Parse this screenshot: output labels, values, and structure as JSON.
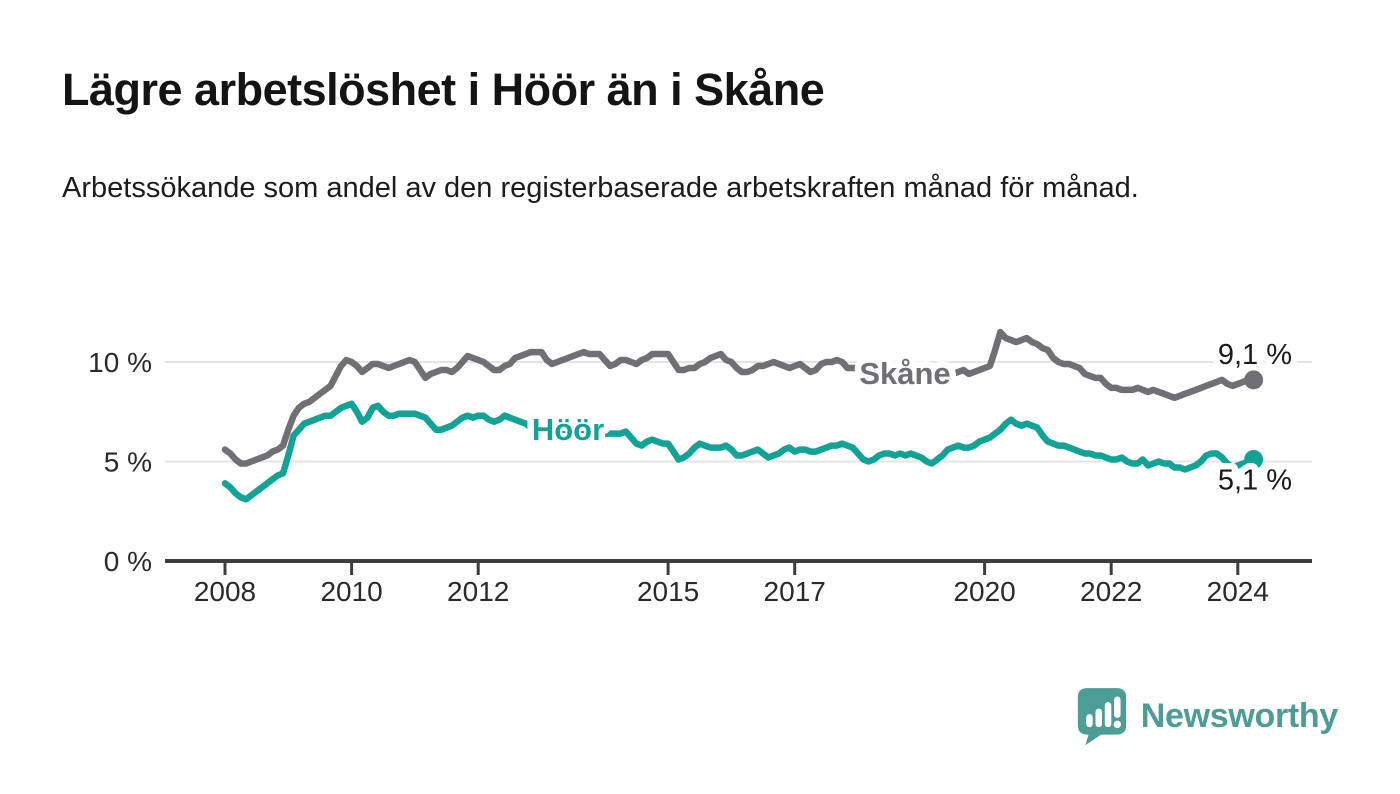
{
  "header": {
    "title": "Lägre arbetslöshet i Höör än i Skåne",
    "subtitle": "Arbetssökande som andel av den registerbaserade arbetskraften månad för månad."
  },
  "footer": {
    "brand": "Newsworthy"
  },
  "colors": {
    "skane_line": "#6f6f75",
    "hoor_line": "#12a396",
    "grid": "#e4e4e4",
    "axis": "#3d3d3d",
    "text": "#1a1a1a",
    "logo_teal": "#4d9c96",
    "background": "#ffffff"
  },
  "chart_data": {
    "type": "line",
    "unit": "percent",
    "frequency": "monthly",
    "start": {
      "year": 2008,
      "month": 1
    },
    "end": {
      "year": 2024,
      "month": 4
    },
    "grid": "horizontal",
    "ylim": [
      0,
      11.8
    ],
    "yticks": [
      {
        "value": 0,
        "label": "0 %"
      },
      {
        "value": 5,
        "label": "5 %"
      },
      {
        "value": 10,
        "label": "10 %"
      }
    ],
    "xticks": [
      2008,
      2010,
      2012,
      2015,
      2017,
      2020,
      2022,
      2024
    ],
    "series": [
      {
        "name": "Skåne",
        "color": "#6f6f75",
        "latest_value": 9.1,
        "end_label": "9,1 %",
        "values": [
          5.6,
          5.4,
          5.1,
          4.9,
          4.9,
          5.0,
          5.1,
          5.2,
          5.3,
          5.5,
          5.6,
          5.8,
          6.6,
          7.3,
          7.7,
          7.9,
          8.0,
          8.2,
          8.4,
          8.6,
          8.8,
          9.3,
          9.8,
          10.1,
          10.0,
          9.8,
          9.5,
          9.7,
          9.9,
          9.9,
          9.8,
          9.7,
          9.8,
          9.9,
          10.0,
          10.1,
          10.0,
          9.6,
          9.2,
          9.4,
          9.5,
          9.6,
          9.6,
          9.5,
          9.7,
          10.0,
          10.3,
          10.2,
          10.1,
          10.0,
          9.8,
          9.6,
          9.6,
          9.8,
          9.9,
          10.2,
          10.3,
          10.4,
          10.5,
          10.5,
          10.5,
          10.1,
          9.9,
          10.0,
          10.1,
          10.2,
          10.3,
          10.4,
          10.5,
          10.4,
          10.4,
          10.4,
          10.1,
          9.8,
          9.9,
          10.1,
          10.1,
          10.0,
          9.9,
          10.1,
          10.2,
          10.4,
          10.4,
          10.4,
          10.4,
          10.0,
          9.6,
          9.6,
          9.7,
          9.7,
          9.9,
          10.0,
          10.2,
          10.3,
          10.4,
          10.1,
          10.0,
          9.7,
          9.5,
          9.5,
          9.6,
          9.8,
          9.8,
          9.9,
          10.0,
          9.9,
          9.8,
          9.7,
          9.8,
          9.9,
          9.7,
          9.5,
          9.6,
          9.9,
          10.0,
          10.0,
          10.1,
          10.0,
          9.7,
          9.7,
          9.7,
          9.6,
          9.6,
          9.5,
          9.5,
          9.5,
          9.4,
          9.4,
          9.5,
          9.5,
          9.4,
          9.4,
          9.4,
          9.4,
          9.3,
          9.4,
          9.4,
          9.5,
          9.4,
          9.5,
          9.6,
          9.4,
          9.5,
          9.6,
          9.7,
          9.8,
          10.6,
          11.5,
          11.2,
          11.1,
          11.0,
          11.1,
          11.2,
          11.0,
          10.9,
          10.7,
          10.6,
          10.2,
          10.0,
          9.9,
          9.9,
          9.8,
          9.7,
          9.4,
          9.3,
          9.2,
          9.2,
          8.9,
          8.7,
          8.7,
          8.6,
          8.6,
          8.6,
          8.7,
          8.6,
          8.5,
          8.6,
          8.5,
          8.4,
          8.3,
          8.2,
          8.3,
          8.4,
          8.5,
          8.6,
          8.7,
          8.8,
          8.9,
          9.0,
          9.1,
          8.9,
          8.8,
          8.9,
          9.0,
          9.1,
          9.1
        ]
      },
      {
        "name": "Höör",
        "color": "#12a396",
        "latest_value": 5.1,
        "end_label": "5,1 %",
        "values": [
          3.9,
          3.7,
          3.4,
          3.2,
          3.1,
          3.3,
          3.5,
          3.7,
          3.9,
          4.1,
          4.3,
          4.4,
          5.3,
          6.3,
          6.6,
          6.9,
          7.0,
          7.1,
          7.2,
          7.3,
          7.3,
          7.5,
          7.7,
          7.8,
          7.9,
          7.5,
          7.0,
          7.2,
          7.7,
          7.8,
          7.5,
          7.3,
          7.3,
          7.4,
          7.4,
          7.4,
          7.4,
          7.3,
          7.2,
          6.9,
          6.6,
          6.6,
          6.7,
          6.8,
          7.0,
          7.2,
          7.3,
          7.2,
          7.3,
          7.3,
          7.1,
          7.0,
          7.1,
          7.3,
          7.2,
          7.1,
          7.0,
          6.9,
          6.7,
          6.6,
          6.6,
          6.5,
          6.5,
          6.4,
          6.4,
          6.5,
          6.5,
          6.4,
          6.5,
          6.4,
          6.4,
          6.4,
          6.4,
          6.4,
          6.4,
          6.4,
          6.5,
          6.2,
          5.9,
          5.8,
          6.0,
          6.1,
          6.0,
          5.9,
          5.9,
          5.5,
          5.1,
          5.2,
          5.4,
          5.7,
          5.9,
          5.8,
          5.7,
          5.7,
          5.7,
          5.8,
          5.6,
          5.3,
          5.3,
          5.4,
          5.5,
          5.6,
          5.4,
          5.2,
          5.3,
          5.4,
          5.6,
          5.7,
          5.5,
          5.6,
          5.6,
          5.5,
          5.5,
          5.6,
          5.7,
          5.8,
          5.8,
          5.9,
          5.8,
          5.7,
          5.4,
          5.1,
          5.0,
          5.1,
          5.3,
          5.4,
          5.4,
          5.3,
          5.4,
          5.3,
          5.4,
          5.3,
          5.2,
          5.0,
          4.9,
          5.1,
          5.3,
          5.6,
          5.7,
          5.8,
          5.7,
          5.7,
          5.8,
          6.0,
          6.1,
          6.2,
          6.4,
          6.6,
          6.9,
          7.1,
          6.9,
          6.8,
          6.9,
          6.8,
          6.7,
          6.3,
          6.0,
          5.9,
          5.8,
          5.8,
          5.7,
          5.6,
          5.5,
          5.4,
          5.4,
          5.3,
          5.3,
          5.2,
          5.1,
          5.1,
          5.2,
          5.0,
          4.9,
          4.9,
          5.1,
          4.8,
          4.9,
          5.0,
          4.9,
          4.9,
          4.7,
          4.7,
          4.6,
          4.7,
          4.8,
          5.0,
          5.3,
          5.4,
          5.4,
          5.2,
          4.9,
          4.7,
          4.8,
          4.9,
          5.0,
          5.1
        ]
      }
    ]
  }
}
